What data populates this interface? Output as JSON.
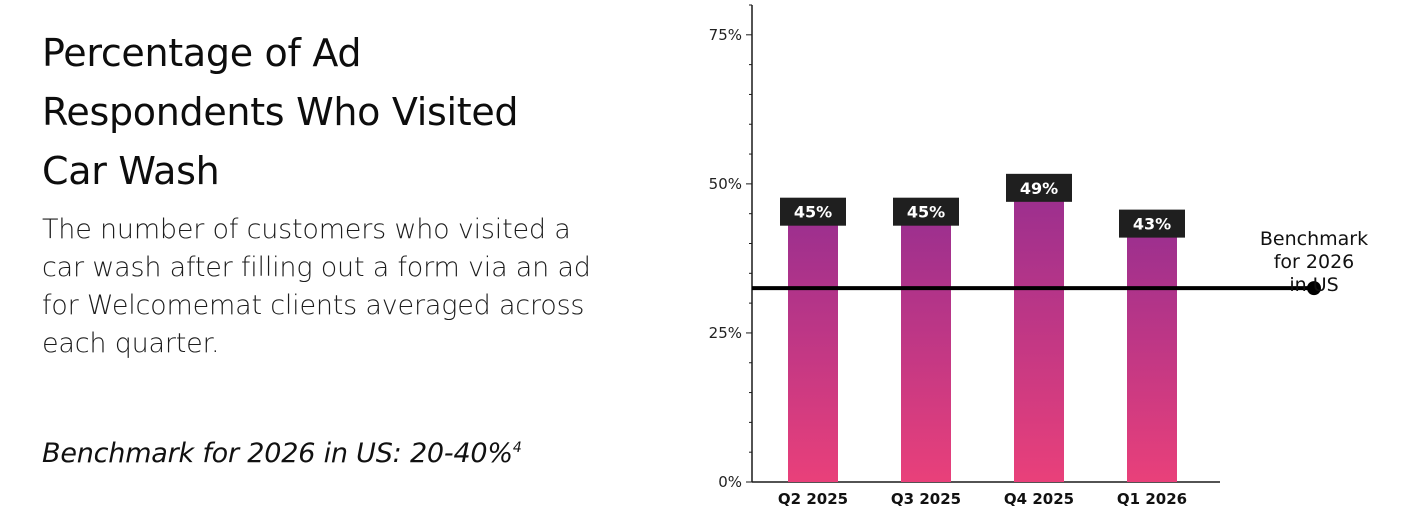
{
  "left": {
    "title_lines": [
      "Percentage of Ad",
      "Respondents Who Visited",
      "Car Wash"
    ],
    "description": "The number of customers who visited a car wash after filling out a form via an ad for Welcomemat clients averaged across each quarter.",
    "benchmark_text": "Benchmark for 2026 in US: 20-40%",
    "benchmark_footnote": "4"
  },
  "chart_data": {
    "type": "bar",
    "title": "",
    "xlabel": "",
    "ylabel": "",
    "categories": [
      "Q2 2025",
      "Q3 2025",
      "Q4 2025",
      "Q1 2026"
    ],
    "values": [
      45,
      45,
      49,
      43
    ],
    "value_labels": [
      "45%",
      "45%",
      "49%",
      "43%"
    ],
    "ylim": [
      0,
      80
    ],
    "y_ticks": [
      0,
      25,
      50,
      75
    ],
    "y_tick_labels": [
      "0%",
      "25%",
      "50%",
      "75%"
    ],
    "grid": false,
    "benchmark_line": {
      "value": 30,
      "label_lines": [
        "Benchmark",
        "for 2026",
        "in US"
      ]
    },
    "colors": {
      "bar_gradient_top": "#9a2f8f",
      "bar_gradient_bottom": "#e9407a",
      "label_box": "#1f1f1f",
      "benchmark_line": "#000000",
      "axis": "#1a1a1a"
    }
  }
}
